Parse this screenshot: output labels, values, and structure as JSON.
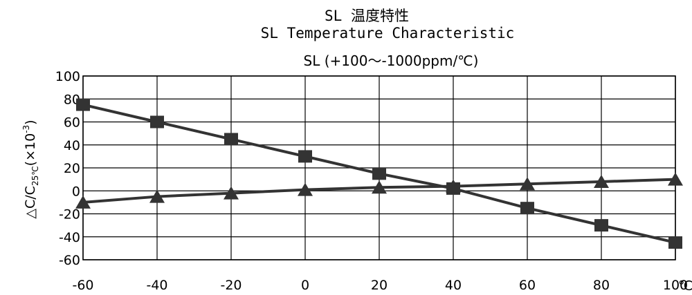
{
  "chart_data": {
    "type": "line",
    "title_zh": "SL 温度特性",
    "title": "SL Temperature Characteristic",
    "subtitle": "SL (+100～-1000ppm/℃)",
    "xlabel": "℃",
    "ylabel": {
      "main": "△C/C",
      "sub": "25℃",
      "paren": "(×10",
      "sup": "-3",
      "close": ")"
    },
    "x_ticks": [
      -60,
      -40,
      -20,
      0,
      20,
      40,
      60,
      80,
      100
    ],
    "y_ticks": [
      100,
      80,
      60,
      40,
      20,
      0,
      -20,
      -40,
      -60
    ],
    "xlim": [
      -60,
      100
    ],
    "ylim": [
      -60,
      100
    ],
    "grid": true,
    "series": [
      {
        "marker": "square",
        "x": [
          -60,
          -40,
          -20,
          0,
          20,
          40,
          60,
          80,
          100
        ],
        "y": [
          75,
          60,
          45,
          30,
          15,
          2,
          -15,
          -30,
          -45
        ]
      },
      {
        "marker": "triangle",
        "x": [
          -60,
          -40,
          -20,
          0,
          20,
          40,
          60,
          80,
          100
        ],
        "y": [
          -10,
          -5,
          -2,
          1,
          3,
          4,
          6,
          8,
          10
        ]
      }
    ]
  }
}
